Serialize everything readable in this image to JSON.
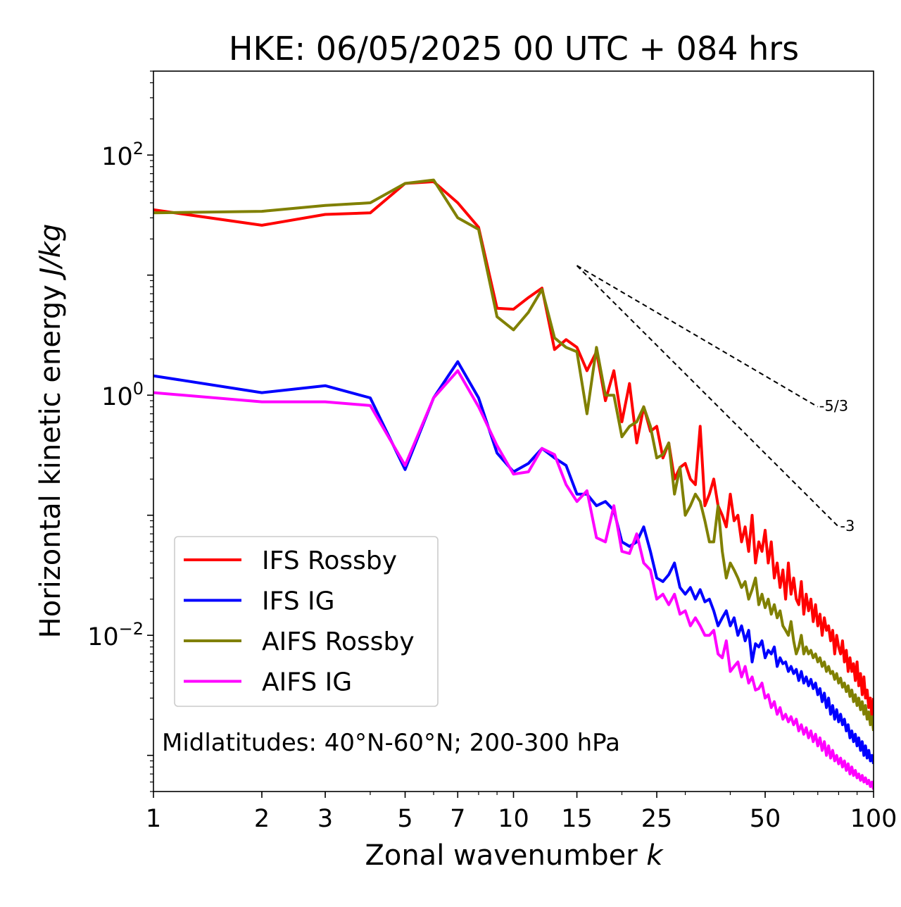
{
  "chart_data": {
    "type": "line",
    "title": "HKE: 06/05/2025 00 UTC + 084 hrs",
    "xlabel_text": "Zonal wavenumber ",
    "xlabel_var": "k",
    "ylabel_text": "Horizontal kinetic energy ",
    "ylabel_unit": "J/kg",
    "x_scale": "log",
    "y_scale": "log",
    "xlim": [
      1,
      100
    ],
    "ylim": [
      0.0005,
      500
    ],
    "x_ticks": [
      1,
      2,
      3,
      5,
      7,
      10,
      15,
      25,
      50,
      100
    ],
    "x_tick_labels": [
      "1",
      "2",
      "3",
      "5",
      "7",
      "10",
      "15",
      "25",
      "50",
      "100"
    ],
    "y_ticks": [
      {
        "value": 100,
        "base": "10",
        "exp": "2"
      },
      {
        "value": 1,
        "base": "10",
        "exp": "0"
      },
      {
        "value": 0.01,
        "base": "10",
        "exp": "−2"
      }
    ],
    "grid": false,
    "legend_position": "lower-left",
    "annotation": "Midlatitudes: 40°N-60°N; 200-300 hPa",
    "reference_slopes": [
      {
        "label": "-5/3",
        "x": [
          15,
          70
        ],
        "y": [
          12.0,
          0.8
        ]
      },
      {
        "label": "-3",
        "x": [
          15,
          80
        ],
        "y": [
          12.0,
          0.08
        ]
      }
    ],
    "series": [
      {
        "name": "IFS Rossby",
        "color": "#ff0000",
        "x": [
          1,
          2,
          3,
          4,
          5,
          6,
          7,
          8,
          9,
          10,
          11,
          12,
          13,
          14,
          15,
          16,
          17,
          18,
          19,
          20,
          21,
          22,
          23,
          24,
          25,
          26,
          27,
          28,
          29,
          30,
          31,
          32,
          33,
          34,
          35,
          36,
          37,
          38,
          39,
          40,
          41,
          42,
          43,
          44,
          45,
          46,
          47,
          48,
          49,
          50,
          51,
          52,
          53,
          54,
          55,
          56,
          57,
          58,
          59,
          60,
          61,
          62,
          63,
          64,
          65,
          66,
          67,
          68,
          69,
          70,
          71,
          72,
          73,
          74,
          75,
          76,
          77,
          78,
          79,
          80,
          81,
          82,
          83,
          84,
          85,
          86,
          87,
          88,
          89,
          90,
          91,
          92,
          93,
          94,
          95,
          96,
          97,
          98,
          99,
          100
        ],
        "y": [
          35,
          26,
          32,
          33,
          58,
          60,
          40,
          25,
          5.3,
          5.2,
          6.5,
          7.8,
          2.4,
          2.9,
          2.5,
          1.6,
          2.3,
          0.9,
          1.6,
          0.6,
          1.25,
          0.4,
          0.8,
          0.5,
          0.55,
          0.3,
          0.4,
          0.2,
          0.25,
          0.27,
          0.2,
          0.18,
          0.55,
          0.12,
          0.15,
          0.2,
          0.12,
          0.1,
          0.08,
          0.15,
          0.09,
          0.1,
          0.06,
          0.08,
          0.05,
          0.1,
          0.04,
          0.06,
          0.05,
          0.075,
          0.04,
          0.06,
          0.03,
          0.04,
          0.025,
          0.035,
          0.02,
          0.04,
          0.022,
          0.03,
          0.02,
          0.018,
          0.028,
          0.015,
          0.022,
          0.016,
          0.02,
          0.013,
          0.018,
          0.012,
          0.015,
          0.01,
          0.014,
          0.011,
          0.012,
          0.009,
          0.011,
          0.007,
          0.01,
          0.008,
          0.007,
          0.009,
          0.006,
          0.0075,
          0.005,
          0.0065,
          0.005,
          0.0058,
          0.0042,
          0.006,
          0.0038,
          0.0048,
          0.0032,
          0.0045,
          0.003,
          0.0035,
          0.0025,
          0.003,
          0.002,
          0.003
        ]
      },
      {
        "name": "IFS IG",
        "color": "#0000ff",
        "x": [
          1,
          2,
          3,
          4,
          5,
          6,
          7,
          8,
          9,
          10,
          11,
          12,
          13,
          14,
          15,
          16,
          17,
          18,
          19,
          20,
          21,
          22,
          23,
          24,
          25,
          26,
          27,
          28,
          29,
          30,
          31,
          32,
          33,
          34,
          35,
          36,
          37,
          38,
          39,
          40,
          41,
          42,
          43,
          44,
          45,
          46,
          47,
          48,
          49,
          50,
          51,
          52,
          53,
          54,
          55,
          56,
          57,
          58,
          59,
          60,
          61,
          62,
          63,
          64,
          65,
          66,
          67,
          68,
          69,
          70,
          71,
          72,
          73,
          74,
          75,
          76,
          77,
          78,
          79,
          80,
          81,
          82,
          83,
          84,
          85,
          86,
          87,
          88,
          89,
          90,
          91,
          92,
          93,
          94,
          95,
          96,
          97,
          98,
          99,
          100
        ],
        "y": [
          1.45,
          1.05,
          1.2,
          0.95,
          0.24,
          0.95,
          1.9,
          0.95,
          0.33,
          0.23,
          0.27,
          0.36,
          0.3,
          0.26,
          0.15,
          0.15,
          0.12,
          0.13,
          0.11,
          0.06,
          0.055,
          0.06,
          0.08,
          0.05,
          0.03,
          0.028,
          0.032,
          0.04,
          0.025,
          0.022,
          0.025,
          0.02,
          0.024,
          0.019,
          0.02,
          0.016,
          0.012,
          0.014,
          0.016,
          0.012,
          0.014,
          0.01,
          0.012,
          0.009,
          0.011,
          0.006,
          0.0085,
          0.008,
          0.009,
          0.0065,
          0.0075,
          0.007,
          0.008,
          0.0055,
          0.0065,
          0.0058,
          0.006,
          0.005,
          0.0055,
          0.0048,
          0.0052,
          0.0042,
          0.005,
          0.004,
          0.0045,
          0.0038,
          0.0043,
          0.0036,
          0.004,
          0.0032,
          0.0036,
          0.0028,
          0.0033,
          0.0025,
          0.003,
          0.0022,
          0.0026,
          0.002,
          0.0024,
          0.0019,
          0.0022,
          0.0018,
          0.002,
          0.0016,
          0.0018,
          0.0014,
          0.0016,
          0.0013,
          0.0015,
          0.0012,
          0.0014,
          0.0011,
          0.0013,
          0.001,
          0.0012,
          0.00095,
          0.0011,
          0.0009,
          0.001,
          0.00085
        ]
      },
      {
        "name": "AIFS Rossby",
        "color": "#808000",
        "x": [
          1,
          2,
          3,
          4,
          5,
          6,
          7,
          8,
          9,
          10,
          11,
          12,
          13,
          14,
          15,
          16,
          17,
          18,
          19,
          20,
          21,
          22,
          23,
          24,
          25,
          26,
          27,
          28,
          29,
          30,
          31,
          32,
          33,
          34,
          35,
          36,
          37,
          38,
          39,
          40,
          41,
          42,
          43,
          44,
          45,
          46,
          47,
          48,
          49,
          50,
          51,
          52,
          53,
          54,
          55,
          56,
          57,
          58,
          59,
          60,
          61,
          62,
          63,
          64,
          65,
          66,
          67,
          68,
          69,
          70,
          71,
          72,
          73,
          74,
          75,
          76,
          77,
          78,
          79,
          80,
          81,
          82,
          83,
          84,
          85,
          86,
          87,
          88,
          89,
          90,
          91,
          92,
          93,
          94,
          95,
          96,
          97,
          98,
          99,
          100
        ],
        "y": [
          33,
          34,
          38,
          40,
          58,
          62,
          30,
          24,
          4.5,
          3.5,
          4.9,
          7.6,
          3.0,
          2.5,
          2.3,
          0.7,
          2.5,
          1.0,
          1.0,
          0.45,
          0.55,
          0.6,
          0.8,
          0.55,
          0.3,
          0.32,
          0.4,
          0.15,
          0.25,
          0.1,
          0.12,
          0.15,
          0.13,
          0.09,
          0.06,
          0.06,
          0.12,
          0.05,
          0.03,
          0.04,
          0.035,
          0.03,
          0.025,
          0.028,
          0.02,
          0.024,
          0.03,
          0.018,
          0.022,
          0.017,
          0.02,
          0.015,
          0.018,
          0.014,
          0.016,
          0.012,
          0.011,
          0.01,
          0.013,
          0.009,
          0.007,
          0.008,
          0.01,
          0.007,
          0.008,
          0.007,
          0.0075,
          0.0065,
          0.007,
          0.006,
          0.0065,
          0.0055,
          0.006,
          0.005,
          0.0055,
          0.0048,
          0.005,
          0.0043,
          0.0048,
          0.004,
          0.0044,
          0.0037,
          0.004,
          0.0034,
          0.0038,
          0.0031,
          0.0035,
          0.0028,
          0.0032,
          0.0026,
          0.003,
          0.0024,
          0.0028,
          0.0022,
          0.0026,
          0.002,
          0.0023,
          0.0018,
          0.0021,
          0.0016
        ]
      },
      {
        "name": "AIFS IG",
        "color": "#ff00ff",
        "x": [
          1,
          2,
          3,
          4,
          5,
          6,
          7,
          8,
          9,
          10,
          11,
          12,
          13,
          14,
          15,
          16,
          17,
          18,
          19,
          20,
          21,
          22,
          23,
          24,
          25,
          26,
          27,
          28,
          29,
          30,
          31,
          32,
          33,
          34,
          35,
          36,
          37,
          38,
          39,
          40,
          41,
          42,
          43,
          44,
          45,
          46,
          47,
          48,
          49,
          50,
          51,
          52,
          53,
          54,
          55,
          56,
          57,
          58,
          59,
          60,
          61,
          62,
          63,
          64,
          65,
          66,
          67,
          68,
          69,
          70,
          71,
          72,
          73,
          74,
          75,
          76,
          77,
          78,
          79,
          80,
          81,
          82,
          83,
          84,
          85,
          86,
          87,
          88,
          89,
          90,
          91,
          92,
          93,
          94,
          95,
          96,
          97,
          98,
          99,
          100
        ],
        "y": [
          1.05,
          0.88,
          0.88,
          0.82,
          0.26,
          0.95,
          1.6,
          0.8,
          0.38,
          0.22,
          0.23,
          0.36,
          0.32,
          0.18,
          0.13,
          0.16,
          0.065,
          0.06,
          0.12,
          0.05,
          0.048,
          0.07,
          0.04,
          0.035,
          0.02,
          0.022,
          0.018,
          0.022,
          0.015,
          0.016,
          0.012,
          0.014,
          0.012,
          0.01,
          0.01,
          0.011,
          0.007,
          0.0065,
          0.009,
          0.005,
          0.0055,
          0.006,
          0.0045,
          0.0055,
          0.004,
          0.0045,
          0.0035,
          0.0036,
          0.004,
          0.003,
          0.0032,
          0.0025,
          0.0028,
          0.0022,
          0.0025,
          0.002,
          0.0022,
          0.0019,
          0.0021,
          0.0018,
          0.002,
          0.0016,
          0.0018,
          0.0015,
          0.0017,
          0.0014,
          0.0016,
          0.0013,
          0.0015,
          0.0012,
          0.0014,
          0.0011,
          0.0013,
          0.001,
          0.0012,
          0.00095,
          0.0011,
          0.0009,
          0.001,
          0.00085,
          0.00095,
          0.0008,
          0.0009,
          0.00075,
          0.00085,
          0.0007,
          0.0008,
          0.00068,
          0.00075,
          0.00065,
          0.0007,
          0.00062,
          0.00068,
          0.0006,
          0.00065,
          0.00058,
          0.00062,
          0.00055,
          0.0006,
          0.00052
        ]
      }
    ]
  }
}
